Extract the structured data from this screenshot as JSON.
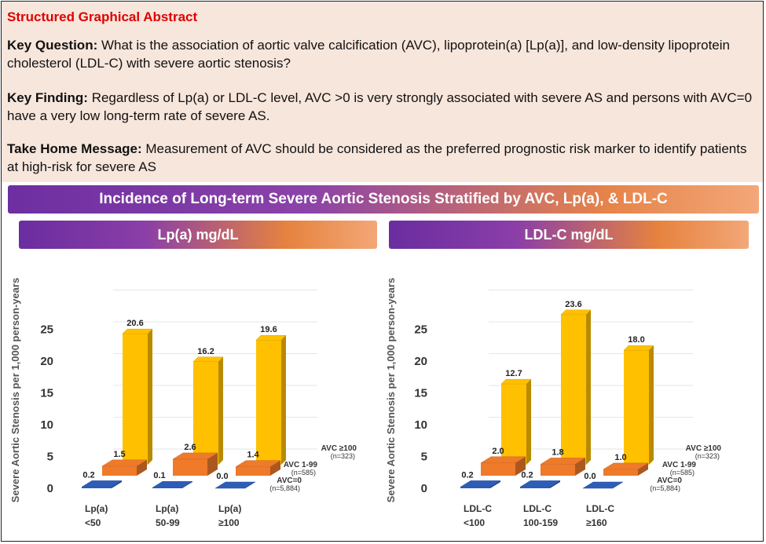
{
  "header": {
    "title": "Structured Graphical Abstract",
    "key_question_label": "Key Question:",
    "key_question_text": "What is the association of aortic valve calcification (AVC), lipoprotein(a) [Lp(a)], and low-density lipoprotein cholesterol (LDL-C) with severe aortic stenosis?",
    "key_finding_label": "Key Finding:",
    "key_finding_text": "Regardless of Lp(a) or LDL-C level, AVC >0 is very strongly associated with severe AS and persons with AVC=0 have a very low long-term rate of severe AS.",
    "take_home_label": "Take Home Message:",
    "take_home_text": "Measurement of AVC should be considered as the preferred prognostic risk marker to identify patients at high-risk for severe AS"
  },
  "banner": "Incidence of Long-term Severe Aortic Stenosis Stratified by AVC, Lp(a), & LDL-C",
  "colors": {
    "avc0": "#2e5db8",
    "avc1_99": "#ee7a2a",
    "avc100": "#ffc000"
  },
  "chart_data": [
    {
      "type": "bar",
      "panel_title": "Lp(a) mg/dL",
      "ylabel": "Severe Aortic Stenosis per 1,000 person-years",
      "yticks": [
        "0",
        "5",
        "10",
        "15",
        "20",
        "25"
      ],
      "ylim": [
        0,
        25
      ],
      "categories": [
        {
          "line1": "Lp(a)",
          "line2": "<50"
        },
        {
          "line1": "Lp(a)",
          "line2": "50-99"
        },
        {
          "line1": "Lp(a)",
          "line2": "≥100"
        }
      ],
      "series": [
        {
          "name": "AVC=0",
          "n": "(n=5,884)",
          "values": [
            0.2,
            0.1,
            0.0
          ],
          "labels": [
            "0.2",
            "0.1",
            "0.0"
          ]
        },
        {
          "name": "AVC 1-99",
          "n": "(n=585)",
          "values": [
            1.5,
            2.6,
            1.4
          ],
          "labels": [
            "1.5",
            "2.6",
            "1.4"
          ]
        },
        {
          "name": "AVC ≥100",
          "n": "(n=323)",
          "values": [
            20.6,
            16.2,
            19.6
          ],
          "labels": [
            "20.6",
            "16.2",
            "19.6"
          ]
        }
      ]
    },
    {
      "type": "bar",
      "panel_title": "LDL-C mg/dL",
      "ylabel": "Severe Aortic Stenosis per 1,000 person-years",
      "yticks": [
        "0",
        "5",
        "10",
        "15",
        "20",
        "25"
      ],
      "ylim": [
        0,
        25
      ],
      "categories": [
        {
          "line1": "LDL-C",
          "line2": "<100"
        },
        {
          "line1": "LDL-C",
          "line2": "100-159"
        },
        {
          "line1": "LDL-C",
          "line2": "≥160"
        }
      ],
      "series": [
        {
          "name": "AVC=0",
          "n": "(n=5,884)",
          "values": [
            0.2,
            0.2,
            0.0
          ],
          "labels": [
            "0.2",
            "0.2",
            "0.0"
          ]
        },
        {
          "name": "AVC 1-99",
          "n": "(n=585)",
          "values": [
            2.0,
            1.8,
            1.0
          ],
          "labels": [
            "2.0",
            "1.8",
            "1.0"
          ]
        },
        {
          "name": "AVC ≥100",
          "n": "(n=323)",
          "values": [
            12.7,
            23.6,
            18.0
          ],
          "labels": [
            "12.7",
            "23.6",
            "18.0"
          ]
        }
      ]
    }
  ]
}
